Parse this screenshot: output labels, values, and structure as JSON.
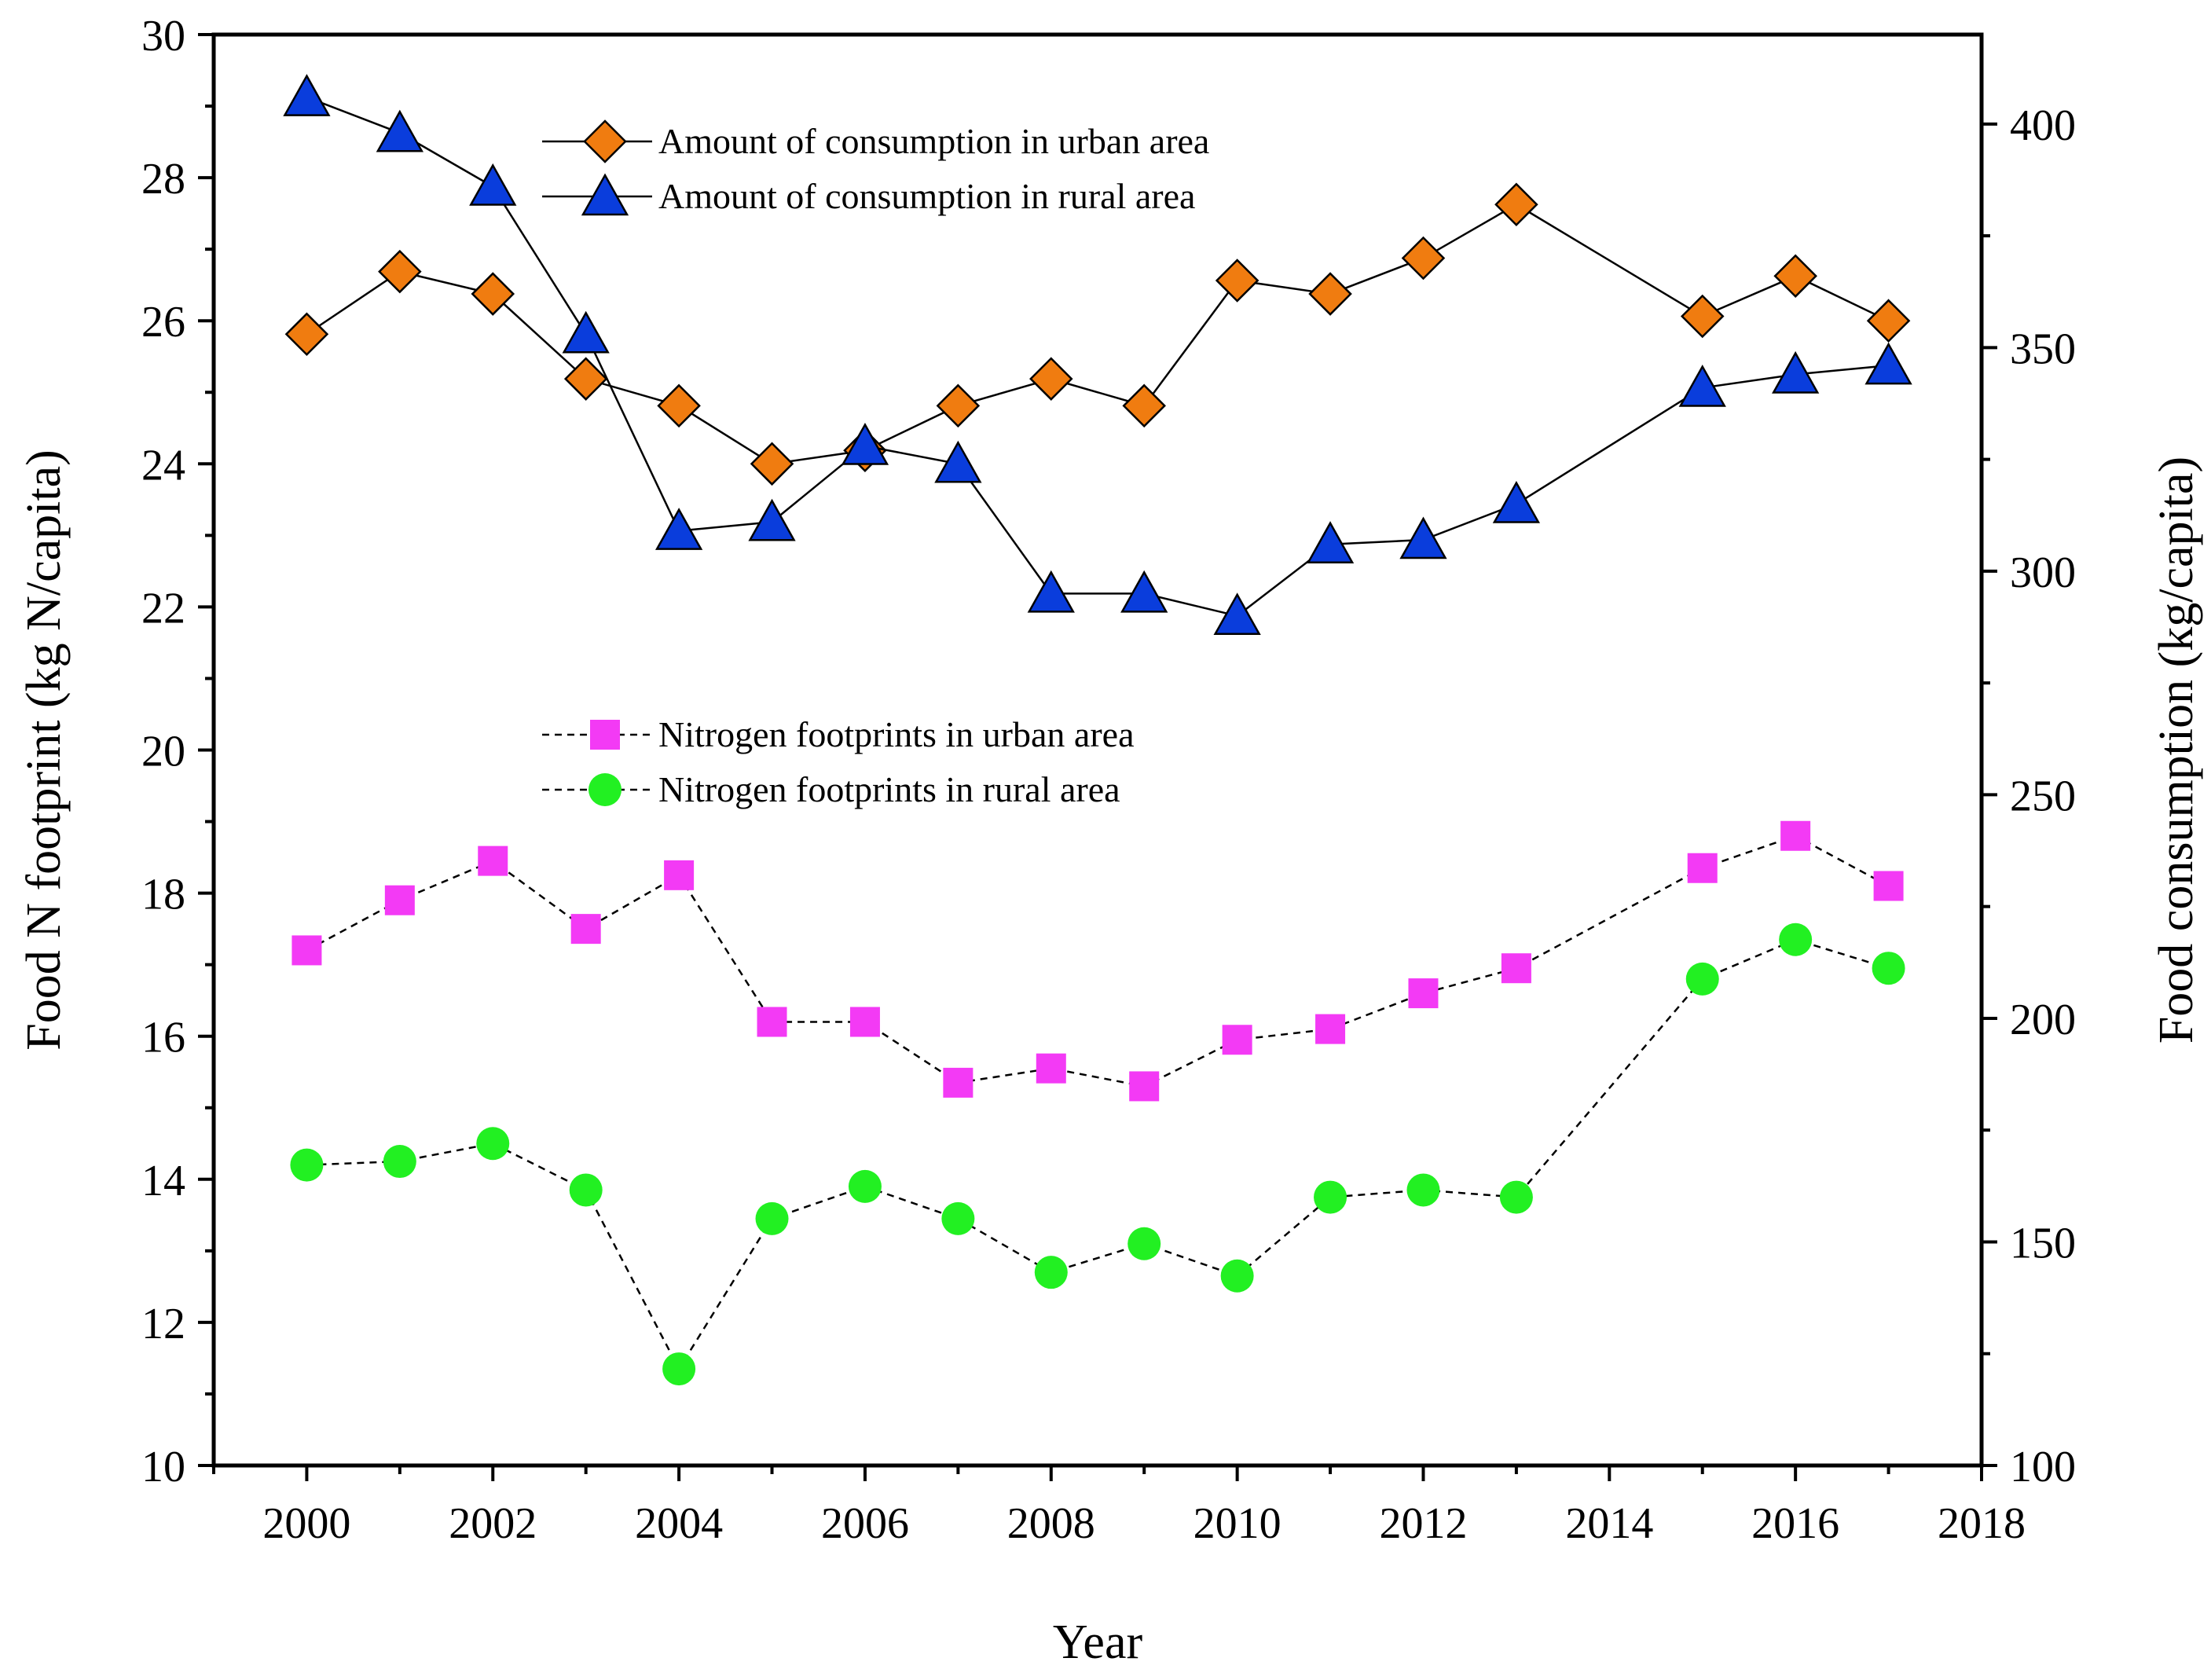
{
  "chart_data": {
    "type": "line",
    "title": "",
    "xlabel": "Year",
    "ylabel_left": "Food N footprint (kg N/capita)",
    "ylabel_right": "Food consumption (kg/capita)",
    "xlim": [
      1999,
      2018
    ],
    "ylim_left": [
      10,
      30
    ],
    "ylim_right": [
      100,
      420
    ],
    "x_ticks": [
      2000,
      2002,
      2004,
      2006,
      2008,
      2010,
      2012,
      2014,
      2016,
      2018
    ],
    "y_left_ticks": [
      10,
      12,
      14,
      16,
      18,
      20,
      22,
      24,
      26,
      28,
      30
    ],
    "y_right_ticks": [
      100,
      150,
      200,
      250,
      300,
      350,
      400
    ],
    "x": [
      2000,
      2001,
      2002,
      2003,
      2004,
      2005,
      2006,
      2007,
      2008,
      2009,
      2010,
      2011,
      2012,
      2013,
      2015,
      2016,
      2017
    ],
    "series": [
      {
        "name": "Amount of consumption in urban area",
        "axis": "right",
        "marker": "diamond",
        "line": "solid",
        "color": "#f07c10",
        "values": [
          353,
          367,
          362,
          343,
          337,
          324,
          327,
          337,
          343,
          337,
          365,
          362,
          370,
          382,
          357,
          366,
          356
        ]
      },
      {
        "name": "Amount of consumption in rural area",
        "axis": "right",
        "marker": "triangle",
        "line": "solid",
        "color": "#0a3ddc",
        "values": [
          406,
          398,
          386,
          353,
          309,
          311,
          328,
          324,
          295,
          295,
          290,
          306,
          307,
          315,
          341,
          344,
          346
        ]
      },
      {
        "name": "Nitrogen footprints in urban area",
        "axis": "left",
        "marker": "square",
        "line": "dashed",
        "color": "#f33af5",
        "values": [
          17.2,
          17.9,
          18.45,
          17.5,
          18.25,
          16.2,
          16.2,
          15.35,
          15.55,
          15.3,
          15.95,
          16.1,
          16.6,
          16.95,
          18.35,
          18.8,
          18.1
        ]
      },
      {
        "name": "Nitrogen footprints in rural area",
        "axis": "left",
        "marker": "circle",
        "line": "dashed",
        "color": "#22f022",
        "values": [
          14.2,
          14.25,
          14.5,
          13.85,
          11.35,
          13.45,
          13.9,
          13.45,
          12.7,
          13.1,
          12.65,
          13.75,
          13.85,
          13.75,
          16.8,
          17.35,
          16.95
        ]
      }
    ],
    "legend": [
      {
        "label": "Amount of consumption in urban area",
        "placement": "top-center"
      },
      {
        "label": "Amount of consumption in rural area",
        "placement": "top-center"
      },
      {
        "label": "Nitrogen footprints in urban area",
        "placement": "center"
      },
      {
        "label": "Nitrogen footprints in rural area",
        "placement": "center"
      }
    ],
    "grid": false
  }
}
